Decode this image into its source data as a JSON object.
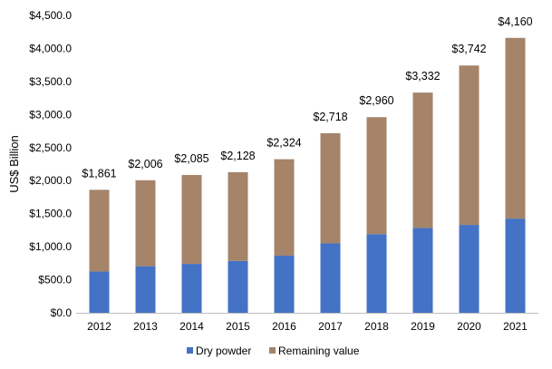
{
  "chart_data": {
    "type": "bar",
    "stacked": true,
    "title": "",
    "xlabel": "",
    "ylabel": "US$ Billion",
    "ylim": [
      0,
      4500
    ],
    "y_ticks": [
      0,
      500,
      1000,
      1500,
      2000,
      2500,
      3000,
      3500,
      4000,
      4500
    ],
    "y_tick_labels": [
      "$0.0",
      "$500.0",
      "$1,000.0",
      "$1,500.0",
      "$2,000.0",
      "$2,500.0",
      "$3,000.0",
      "$3,500.0",
      "$4,000.0",
      "$4,500.0"
    ],
    "categories": [
      "2012",
      "2013",
      "2014",
      "2015",
      "2016",
      "2017",
      "2018",
      "2019",
      "2020",
      "2021"
    ],
    "series": [
      {
        "name": "Dry powder",
        "color": "#4472C4",
        "values": [
          625,
          705,
          740,
          785,
          865,
          1050,
          1190,
          1285,
          1330,
          1425
        ]
      },
      {
        "name": "Remaining value",
        "color": "#A5846A",
        "values": [
          1236,
          1301,
          1345,
          1343,
          1459,
          1668,
          1770,
          2047,
          2412,
          2735
        ]
      }
    ],
    "totals": [
      1861,
      2006,
      2085,
      2128,
      2324,
      2718,
      2960,
      3332,
      3742,
      4160
    ],
    "total_labels": [
      "$1,861",
      "$2,006",
      "$2,085",
      "$2,128",
      "$2,324",
      "$2,718",
      "$2,960",
      "$3,332",
      "$3,742",
      "$4,160"
    ],
    "grid": false,
    "legend": "bottom"
  }
}
